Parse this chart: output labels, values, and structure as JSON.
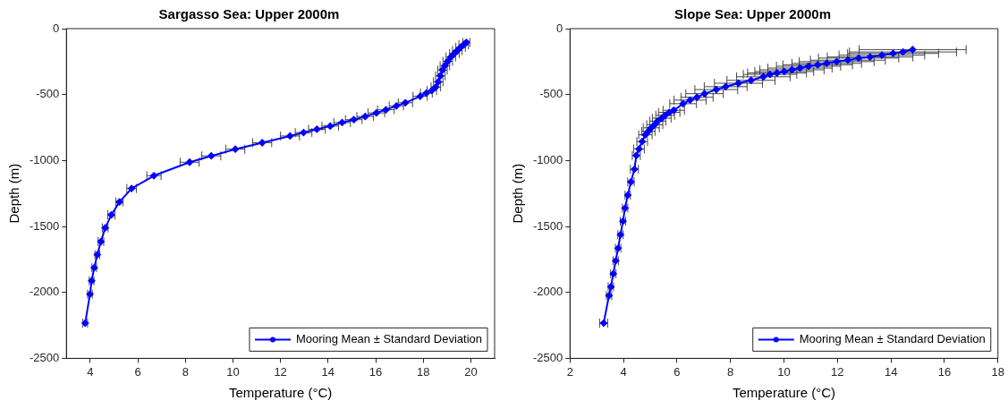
{
  "chart_data": [
    {
      "type": "line",
      "title": "Sargasso Sea: Upper 2000m",
      "xlabel": "Temperature (°C)",
      "ylabel": "Depth (m)",
      "xlim": [
        3,
        21
      ],
      "xticks": [
        4,
        6,
        8,
        10,
        12,
        14,
        16,
        18,
        20
      ],
      "ylim": [
        -2500,
        0
      ],
      "yticks": [
        -2500,
        -2000,
        -1500,
        -1000,
        -500,
        0
      ],
      "grid": false,
      "legend": "bottom right",
      "marker": "diamond",
      "line_style": "solid",
      "series": [
        {
          "name": "Mooring Mean ± Standard Deviation",
          "color": "#0000ff",
          "x": [
            19.81,
            19.7,
            19.57,
            19.43,
            19.31,
            19.16,
            19.03,
            18.91,
            18.81,
            18.72,
            18.63,
            18.53,
            18.36,
            18.13,
            17.87,
            17.25,
            16.87,
            16.43,
            16.03,
            15.56,
            15.08,
            14.59,
            14.09,
            13.53,
            12.97,
            12.4,
            11.23,
            10.1,
            9.09,
            8.18,
            6.68,
            5.74,
            5.23,
            4.89,
            4.63,
            4.45,
            4.3,
            4.17,
            4.06,
            3.99,
            3.79
          ],
          "values": [
            -104,
            -122,
            -142,
            -166,
            -188,
            -215,
            -248,
            -281,
            -314,
            -358,
            -403,
            -442,
            -469,
            -489,
            -513,
            -562,
            -586,
            -615,
            -639,
            -666,
            -690,
            -712,
            -739,
            -763,
            -788,
            -814,
            -865,
            -914,
            -965,
            -1013,
            -1115,
            -1212,
            -1314,
            -1412,
            -1511,
            -1615,
            -1714,
            -1813,
            -1912,
            -2013,
            -2233
          ],
          "xerrors": [
            0.15,
            0.2,
            0.2,
            0.2,
            0.2,
            0.2,
            0.2,
            0.2,
            0.2,
            0.2,
            0.2,
            0.2,
            0.2,
            0.25,
            0.3,
            0.3,
            0.3,
            0.35,
            0.35,
            0.35,
            0.35,
            0.35,
            0.35,
            0.35,
            0.35,
            0.4,
            0.4,
            0.4,
            0.4,
            0.4,
            0.3,
            0.2,
            0.15,
            0.15,
            0.12,
            0.12,
            0.1,
            0.1,
            0.1,
            0.1,
            0.1
          ]
        }
      ]
    },
    {
      "type": "line",
      "title": "Slope Sea: Upper 2000m",
      "xlabel": "Temperature (°C)",
      "ylabel": "Depth (m)",
      "xlim": [
        2,
        18
      ],
      "xticks": [
        2,
        4,
        6,
        8,
        10,
        12,
        14,
        16,
        18
      ],
      "ylim": [
        -2500,
        0
      ],
      "yticks": [
        -2500,
        -2000,
        -1500,
        -1000,
        -500,
        0
      ],
      "grid": false,
      "legend": "bottom right",
      "marker": "diamond",
      "line_style": "solid",
      "series": [
        {
          "name": "Mooring Mean ± Standard Deviation",
          "color": "#0000ff",
          "x": [
            14.81,
            14.45,
            14.08,
            13.66,
            13.22,
            12.79,
            12.39,
            11.97,
            11.6,
            11.26,
            10.92,
            10.6,
            10.3,
            10.01,
            9.74,
            9.48,
            9.23,
            8.77,
            8.3,
            7.82,
            7.47,
            7.03,
            6.75,
            6.49,
            6.23,
            5.88,
            5.71,
            5.56,
            5.43,
            5.28,
            5.17,
            5.04,
            4.93,
            4.82,
            4.7,
            4.58,
            4.48,
            4.41,
            4.28,
            4.16,
            4.06,
            3.98,
            3.89,
            3.8,
            3.71,
            3.62,
            3.53,
            3.46,
            3.26
          ],
          "values": [
            -159,
            -177,
            -188,
            -201,
            -215,
            -223,
            -239,
            -250,
            -263,
            -274,
            -285,
            -299,
            -312,
            -325,
            -336,
            -347,
            -365,
            -392,
            -414,
            -440,
            -462,
            -493,
            -520,
            -542,
            -569,
            -619,
            -635,
            -657,
            -679,
            -701,
            -728,
            -752,
            -779,
            -805,
            -856,
            -912,
            -962,
            -1066,
            -1162,
            -1263,
            -1361,
            -1460,
            -1562,
            -1665,
            -1760,
            -1859,
            -1958,
            -2024,
            -2233
          ],
          "xerrors": [
            2,
            2,
            1.7,
            1.6,
            1.6,
            1.5,
            1.4,
            1.4,
            1.3,
            1.3,
            1.2,
            1.2,
            1.2,
            1.1,
            1.1,
            1,
            1,
            0.9,
            0.9,
            0.8,
            0.8,
            0.7,
            0.6,
            0.6,
            0.5,
            0.4,
            0.4,
            0.35,
            0.35,
            0.3,
            0.3,
            0.3,
            0.25,
            0.25,
            0.2,
            0.2,
            0.15,
            0.15,
            0.12,
            0.1,
            0.1,
            0.1,
            0.1,
            0.1,
            0.1,
            0.1,
            0.1,
            0.1,
            0.15
          ]
        }
      ]
    }
  ]
}
